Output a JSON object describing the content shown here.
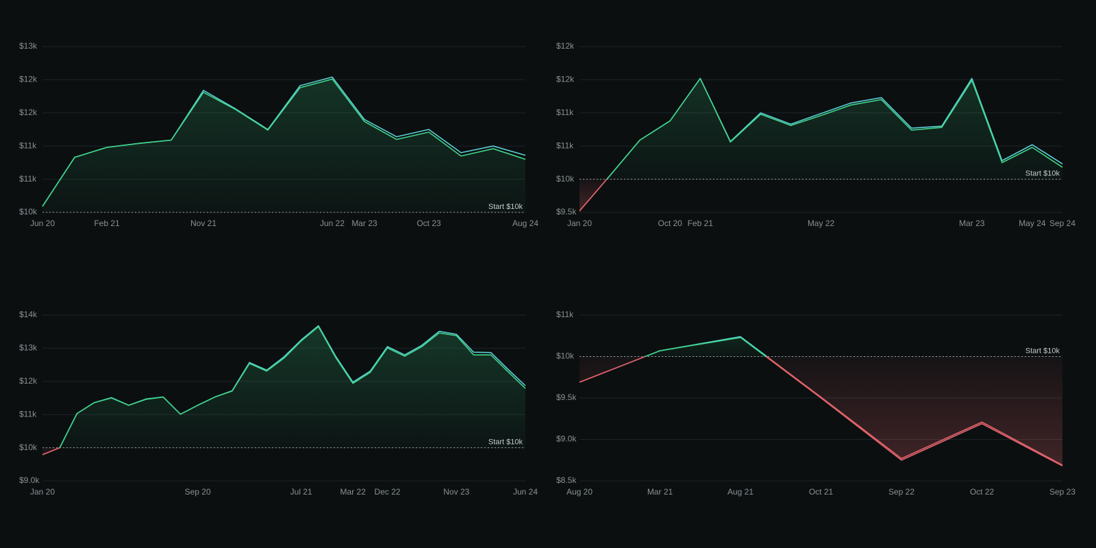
{
  "chart_data": [
    {
      "type": "area",
      "annotation": "Start $10k",
      "baseline": 10000,
      "negative_color": "#e0636b",
      "grid": true,
      "categories": [
        "Jun 20",
        null,
        "Feb 21",
        null,
        null,
        "Nov 21",
        null,
        null,
        null,
        "Jun 22",
        "Mar 23",
        null,
        "Oct 23",
        null,
        null,
        "Aug 24"
      ],
      "series": [
        {
          "color": "#5ccfd6",
          "values": [
            10090,
            10830,
            10980,
            11040,
            11090,
            11840,
            11560,
            11250,
            11910,
            12040,
            11400,
            11140,
            11250,
            10900,
            11000,
            10860
          ]
        },
        {
          "color": "#3fd68a",
          "values": [
            10090,
            10830,
            10980,
            11040,
            11090,
            11810,
            11550,
            11240,
            11880,
            12010,
            11370,
            11100,
            11210,
            10850,
            10960,
            10800
          ]
        }
      ],
      "ylim": [
        10000,
        12500
      ],
      "yticks": [
        {
          "value": 10000,
          "label": "$10k"
        },
        {
          "value": 10500,
          "label": "$11k"
        },
        {
          "value": 11000,
          "label": "$11k"
        },
        {
          "value": 11500,
          "label": "$12k"
        },
        {
          "value": 12000,
          "label": "$12k"
        },
        {
          "value": 12500,
          "label": "$13k"
        }
      ]
    },
    {
      "type": "area",
      "annotation": "Start $10k",
      "baseline": 10000,
      "negative_color": "#e0636b",
      "grid": true,
      "categories": [
        "Jan 20",
        null,
        null,
        "Oct 20",
        "Feb 21",
        null,
        null,
        null,
        "May 22",
        null,
        null,
        null,
        null,
        "Mar 23",
        null,
        "May 24",
        "Sep 24"
      ],
      "series": [
        {
          "color": "#5ccfd6",
          "values": [
            9520,
            10050,
            10590,
            10880,
            11520,
            10570,
            11000,
            10830,
            10990,
            11150,
            11230,
            10770,
            10800,
            11520,
            10280,
            10520,
            10230
          ]
        },
        {
          "color": "#3fd68a",
          "values": [
            9520,
            10050,
            10590,
            10880,
            11520,
            10560,
            10980,
            10810,
            10960,
            11120,
            11200,
            10740,
            10780,
            11490,
            10250,
            10480,
            10180
          ]
        }
      ],
      "ylim": [
        9500,
        12000
      ],
      "yticks": [
        {
          "value": 9500,
          "label": "$9.5k"
        },
        {
          "value": 10000,
          "label": "$10k"
        },
        {
          "value": 10500,
          "label": "$11k"
        },
        {
          "value": 11000,
          "label": "$11k"
        },
        {
          "value": 11500,
          "label": "$12k"
        },
        {
          "value": 12000,
          "label": "$12k"
        }
      ]
    },
    {
      "type": "area",
      "annotation": "Start $10k",
      "baseline": 10000,
      "negative_color": "#e0636b",
      "grid": true,
      "categories": [
        "Jan 20",
        null,
        null,
        null,
        null,
        null,
        null,
        null,
        null,
        "Sep 20",
        null,
        null,
        null,
        null,
        null,
        "Jul 21",
        null,
        null,
        "Mar 22",
        null,
        "Dec 22",
        null,
        null,
        null,
        "Nov 23",
        null,
        null,
        null,
        "Jun 24"
      ],
      "series": [
        {
          "color": "#5ccfd6",
          "values": [
            9790,
            10000,
            11030,
            11360,
            11510,
            11280,
            11470,
            11530,
            11010,
            11280,
            11530,
            11720,
            12570,
            12340,
            12740,
            13250,
            13680,
            12760,
            11980,
            12310,
            13050,
            12800,
            13090,
            13510,
            13420,
            12880,
            12870,
            12360,
            11870
          ]
        },
        {
          "color": "#3fd68a",
          "values": [
            9790,
            10000,
            11030,
            11360,
            11500,
            11280,
            11460,
            11530,
            11010,
            11280,
            11530,
            11710,
            12540,
            12310,
            12700,
            13220,
            13650,
            12720,
            11940,
            12270,
            13010,
            12760,
            13050,
            13460,
            13380,
            12800,
            12800,
            12290,
            11790
          ]
        }
      ],
      "ylim": [
        9000,
        14000
      ],
      "yticks": [
        {
          "value": 9000,
          "label": "$9.0k"
        },
        {
          "value": 10000,
          "label": "$10k"
        },
        {
          "value": 11000,
          "label": "$11k"
        },
        {
          "value": 12000,
          "label": "$12k"
        },
        {
          "value": 13000,
          "label": "$13k"
        },
        {
          "value": 14000,
          "label": "$14k"
        }
      ]
    },
    {
      "type": "area",
      "annotation": "Start $10k",
      "baseline": 10000,
      "negative_color": "#e0636b",
      "grid": true,
      "categories": [
        "Aug 20",
        "Mar 21",
        "Aug 21",
        "Oct 21",
        "Sep 22",
        "Oct 22",
        "Sep 23"
      ],
      "series": [
        {
          "color": "#5ccfd6",
          "values": [
            9690,
            10070,
            10240,
            9510,
            8770,
            9210,
            8690
          ]
        },
        {
          "color": "#3fd68a",
          "values": [
            9690,
            10070,
            10230,
            9500,
            8750,
            9190,
            8680
          ]
        }
      ],
      "ylim": [
        8500,
        10500
      ],
      "yticks": [
        {
          "value": 8500,
          "label": "$8.5k"
        },
        {
          "value": 9000,
          "label": "$9.0k"
        },
        {
          "value": 9500,
          "label": "$9.5k"
        },
        {
          "value": 10000,
          "label": "$10k"
        },
        {
          "value": 10500,
          "label": "$11k"
        }
      ]
    }
  ]
}
